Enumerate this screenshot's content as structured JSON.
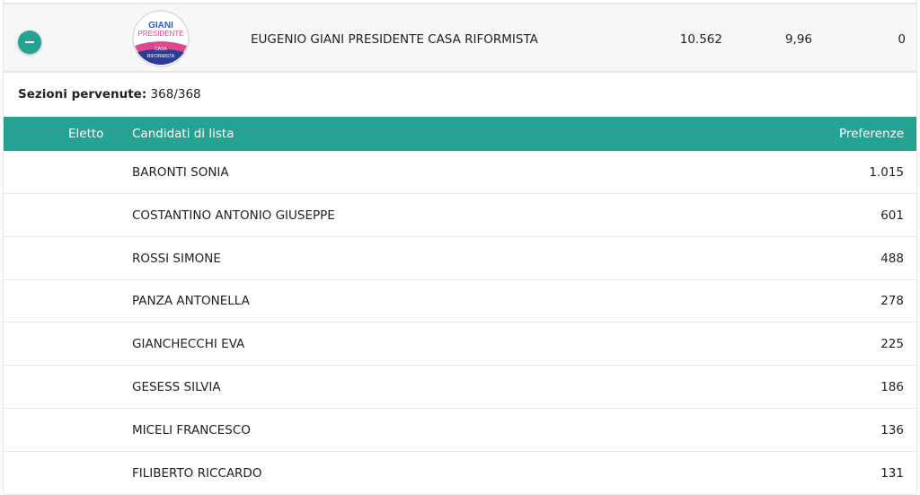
{
  "party": {
    "name": "EUGENIO GIANI PRESIDENTE CASA RIFORMISTA",
    "votes": "10.562",
    "percent": "9,96",
    "seats": "0",
    "logo_text": [
      "GIANI",
      "PRESIDENTE",
      "CASA",
      "RIFORMISTA"
    ]
  },
  "sections": {
    "label": "Sezioni pervenute:",
    "value": "368/368"
  },
  "table": {
    "headers": {
      "elected": "Eletto",
      "candidates": "Candidati di lista",
      "preferences": "Preferenze"
    },
    "rows": [
      {
        "name": "BARONTI SONIA",
        "pref": "1.015"
      },
      {
        "name": "COSTANTINO ANTONIO GIUSEPPE",
        "pref": "601"
      },
      {
        "name": "ROSSI SIMONE",
        "pref": "488"
      },
      {
        "name": "PANZA ANTONELLA",
        "pref": "278"
      },
      {
        "name": "GIANCHECCHI EVA",
        "pref": "225"
      },
      {
        "name": "GESESS SILVIA",
        "pref": "186"
      },
      {
        "name": "MICELI FRANCESCO",
        "pref": "136"
      },
      {
        "name": "FILIBERTO RICCARDO",
        "pref": "131"
      }
    ]
  },
  "colors": {
    "accent": "#26a293"
  }
}
